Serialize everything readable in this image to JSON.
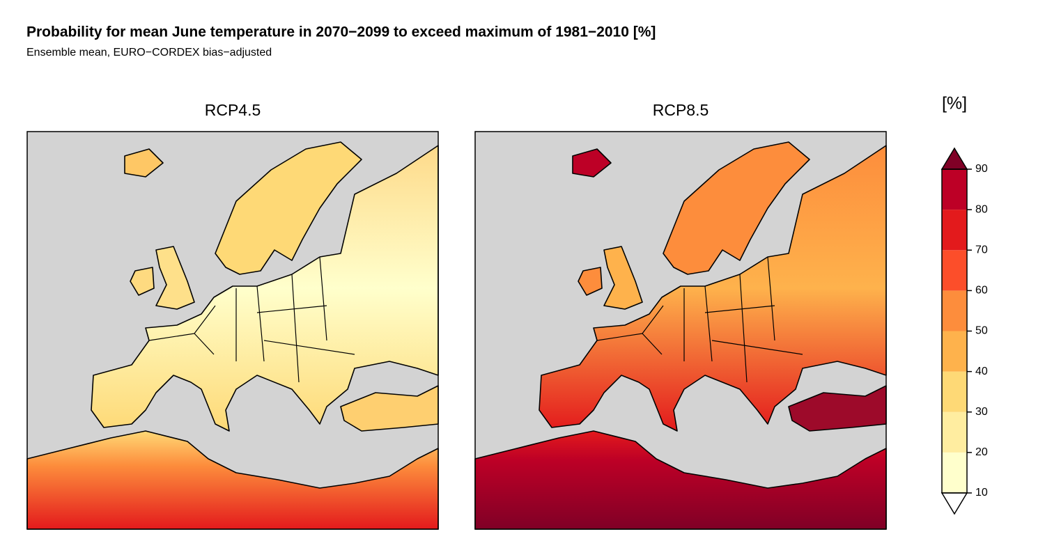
{
  "title": "Probability for mean June temperature in 2070−2099 to exceed maximum of 1981−2010 [%]",
  "subtitle": "Ensemble mean, EURO−CORDEX bias−adjusted",
  "panels": [
    {
      "title": "RCP4.5"
    },
    {
      "title": "RCP8.5"
    }
  ],
  "colorbar": {
    "label": "[%]",
    "ticks": [
      10,
      20,
      30,
      40,
      50,
      60,
      70,
      80,
      90
    ],
    "colors": [
      "#ffffcc",
      "#ffeda0",
      "#fed976",
      "#feb24c",
      "#fd8d3c",
      "#fc4e2a",
      "#e31a1c",
      "#bd0026"
    ],
    "under_color": "#ffffff",
    "over_color": "#800026"
  }
}
